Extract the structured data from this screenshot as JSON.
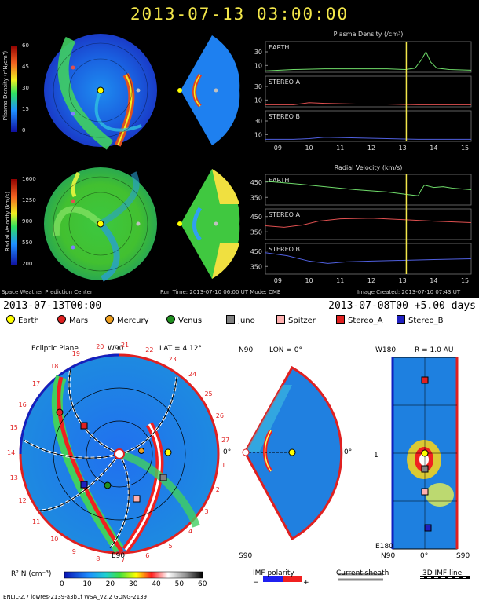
{
  "top": {
    "timestamp": "2013-07-13  03:00:00",
    "density_colorbar": {
      "label": "Plasma Density (r²N/cm³)",
      "ticks": [
        "60",
        "45",
        "30",
        "15",
        "0"
      ]
    },
    "velocity_colorbar": {
      "label": "Radial Velocity (km/s)",
      "ticks": [
        "1600",
        "1250",
        "900",
        "550",
        "200"
      ]
    },
    "footer_left": "Space Weather Prediction Center",
    "footer_mid": "Run Time: 2013-07-10 06:00 UT   Mode: CME",
    "footer_right": "Image Created: 2013-07-10 07:43 UT"
  },
  "chart_data": [
    {
      "type": "line",
      "title": "Plasma Density (/cm³)",
      "x_ticks": [
        "09",
        "10",
        "11",
        "12",
        "13",
        "14",
        "15"
      ],
      "xlim": [
        8.6,
        15.2
      ],
      "current_time_marker": 13.12,
      "panels": [
        {
          "name": "EARTH",
          "color": "#6fdc6a",
          "y_ticks": [
            10,
            30
          ],
          "ylim": [
            0,
            45
          ],
          "x": [
            8.6,
            9.5,
            10.5,
            11.5,
            12.5,
            13.1,
            13.4,
            13.6,
            13.75,
            13.9,
            14.1,
            14.5,
            15.2
          ],
          "y": [
            2,
            4,
            5,
            5,
            5,
            4,
            6,
            18,
            30,
            15,
            6,
            4,
            3
          ]
        },
        {
          "name": "STEREO A",
          "color": "#e05050",
          "y_ticks": [
            10,
            30
          ],
          "ylim": [
            0,
            45
          ],
          "x": [
            8.6,
            9.5,
            10.0,
            10.5,
            11.5,
            12.5,
            13.5,
            14.5,
            15.2
          ],
          "y": [
            3,
            3,
            6,
            5,
            4,
            4,
            3,
            3,
            3
          ]
        },
        {
          "name": "STEREO B",
          "color": "#5060e0",
          "y_ticks": [
            10,
            30
          ],
          "ylim": [
            0,
            45
          ],
          "x": [
            8.6,
            9.5,
            10.0,
            10.5,
            11.5,
            12.5,
            13.5,
            14.5,
            15.2
          ],
          "y": [
            3,
            3,
            4,
            6,
            5,
            4,
            3,
            3,
            3
          ]
        }
      ]
    },
    {
      "type": "line",
      "title": "Radial Velocity (km/s)",
      "x_ticks": [
        "09",
        "10",
        "11",
        "12",
        "13",
        "14",
        "15"
      ],
      "xlim": [
        8.6,
        15.2
      ],
      "current_time_marker": 13.12,
      "panels": [
        {
          "name": "EARTH",
          "color": "#6fdc6a",
          "y_ticks": [
            350,
            450
          ],
          "ylim": [
            300,
            500
          ],
          "x": [
            8.6,
            9.5,
            10.5,
            11.5,
            12.5,
            13.1,
            13.5,
            13.6,
            13.7,
            14.0,
            14.3,
            14.6,
            15.2
          ],
          "y": [
            455,
            440,
            420,
            400,
            385,
            370,
            360,
            400,
            430,
            415,
            420,
            410,
            400
          ]
        },
        {
          "name": "STEREO A",
          "color": "#e05050",
          "y_ticks": [
            350,
            450
          ],
          "ylim": [
            300,
            500
          ],
          "x": [
            8.6,
            9.2,
            9.8,
            10.3,
            11.0,
            12.0,
            13.0,
            14.0,
            15.2
          ],
          "y": [
            390,
            380,
            395,
            420,
            435,
            440,
            430,
            420,
            410
          ]
        },
        {
          "name": "STEREO B",
          "color": "#5060e0",
          "y_ticks": [
            350,
            450
          ],
          "ylim": [
            300,
            500
          ],
          "x": [
            8.6,
            9.3,
            10.0,
            10.6,
            11.2,
            12.0,
            13.0,
            14.0,
            15.2
          ],
          "y": [
            440,
            420,
            385,
            370,
            380,
            385,
            390,
            395,
            400
          ]
        }
      ]
    }
  ],
  "bottom": {
    "date_left": "2013-07-13T00:00",
    "date_right": "2013-07-08T00 +5.00 days",
    "legend": [
      {
        "label": "Earth",
        "color": "#ffff00",
        "shape": "circle"
      },
      {
        "label": "Mars",
        "color": "#e02020",
        "shape": "circle"
      },
      {
        "label": "Mercury",
        "color": "#f0a020",
        "shape": "circle"
      },
      {
        "label": "Venus",
        "color": "#209020",
        "shape": "circle"
      },
      {
        "label": "Juno",
        "color": "#808080",
        "shape": "square"
      },
      {
        "label": "Spitzer",
        "color": "#ffb0b0",
        "shape": "square"
      },
      {
        "label": "Stereo_A",
        "color": "#e02020",
        "shape": "square"
      },
      {
        "label": "Stereo_B",
        "color": "#2020c0",
        "shape": "square"
      }
    ],
    "ecliptic_title": "Ecliptic Plane",
    "w90": "W90",
    "lat": "LAT = 4.12°",
    "e90": "E90",
    "zero_deg": "0°",
    "longitude_ticks": [
      "1",
      "2",
      "3",
      "4",
      "5",
      "6",
      "7",
      "8",
      "9",
      "10",
      "11",
      "12",
      "13",
      "14",
      "15",
      "16",
      "17",
      "18",
      "19",
      "20",
      "21",
      "22",
      "23",
      "24",
      "25",
      "26",
      "27"
    ],
    "meridional": {
      "n90": "N90",
      "lon": "LON = 0°",
      "s90": "S90",
      "zero": "0°"
    },
    "radial": {
      "w180": "W180",
      "r": "R = 1.0 AU",
      "e180": "E180",
      "n90": "N90",
      "zero": "0°",
      "s90": "S90",
      "one": "1"
    },
    "colorbar": {
      "label": "R² N (cm⁻³)",
      "ticks": [
        "0",
        "10",
        "20",
        "30",
        "40",
        "50",
        "60"
      ]
    },
    "imf_polarity": "IMF polarity",
    "imf_minus": "−",
    "imf_plus": "+",
    "current_sheath": "Current sheath",
    "imf_line": "3D IMF line",
    "footer": "ENLIL-2.7 lowres-2139-a3b1f WSA_V2.2 GONG-2139"
  }
}
